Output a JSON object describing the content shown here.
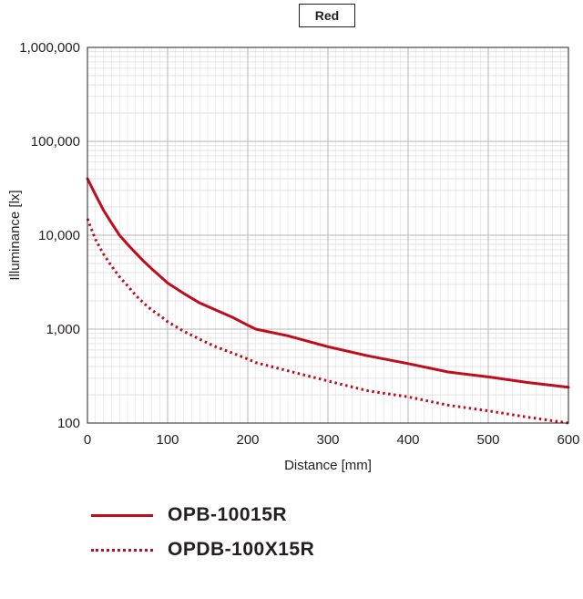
{
  "chart_data": {
    "type": "line",
    "title": "Red",
    "xlabel": "Distance [mm]",
    "ylabel": "Illuminance [lx]",
    "xlim": [
      0,
      600
    ],
    "ylim": [
      100,
      1000000
    ],
    "yscale": "log",
    "grid": true,
    "legend_position": "bottom",
    "x_ticks": [
      "0",
      "100",
      "200",
      "300",
      "400",
      "500",
      "600"
    ],
    "y_ticks": [
      "100",
      "1,000",
      "10,000",
      "100,000",
      "1,000,000"
    ],
    "colors": {
      "line": "#c00d1e",
      "grid_major": "#b5b5b5",
      "grid_minor": "#d9d9d9"
    },
    "series": [
      {
        "name": "OPB-10015R",
        "style": "solid",
        "x": [
          0,
          10,
          20,
          30,
          40,
          50,
          60,
          70,
          80,
          90,
          100,
          120,
          140,
          160,
          180,
          200,
          210,
          250,
          300,
          350,
          400,
          450,
          500,
          550,
          600
        ],
        "y": [
          40000,
          27000,
          18500,
          13500,
          10000,
          8000,
          6500,
          5300,
          4400,
          3700,
          3100,
          2400,
          1900,
          1600,
          1350,
          1100,
          1000,
          850,
          650,
          520,
          430,
          350,
          310,
          270,
          240
        ]
      },
      {
        "name": "OPDB-100X15R",
        "style": "dotted",
        "x": [
          0,
          10,
          20,
          30,
          40,
          50,
          60,
          70,
          80,
          90,
          100,
          120,
          140,
          160,
          180,
          200,
          210,
          250,
          300,
          350,
          400,
          450,
          500,
          550,
          600
        ],
        "y": [
          15000,
          9000,
          6300,
          4700,
          3600,
          2900,
          2300,
          1900,
          1600,
          1400,
          1200,
          950,
          780,
          650,
          560,
          480,
          440,
          360,
          280,
          220,
          190,
          155,
          135,
          115,
          98
        ]
      }
    ]
  }
}
